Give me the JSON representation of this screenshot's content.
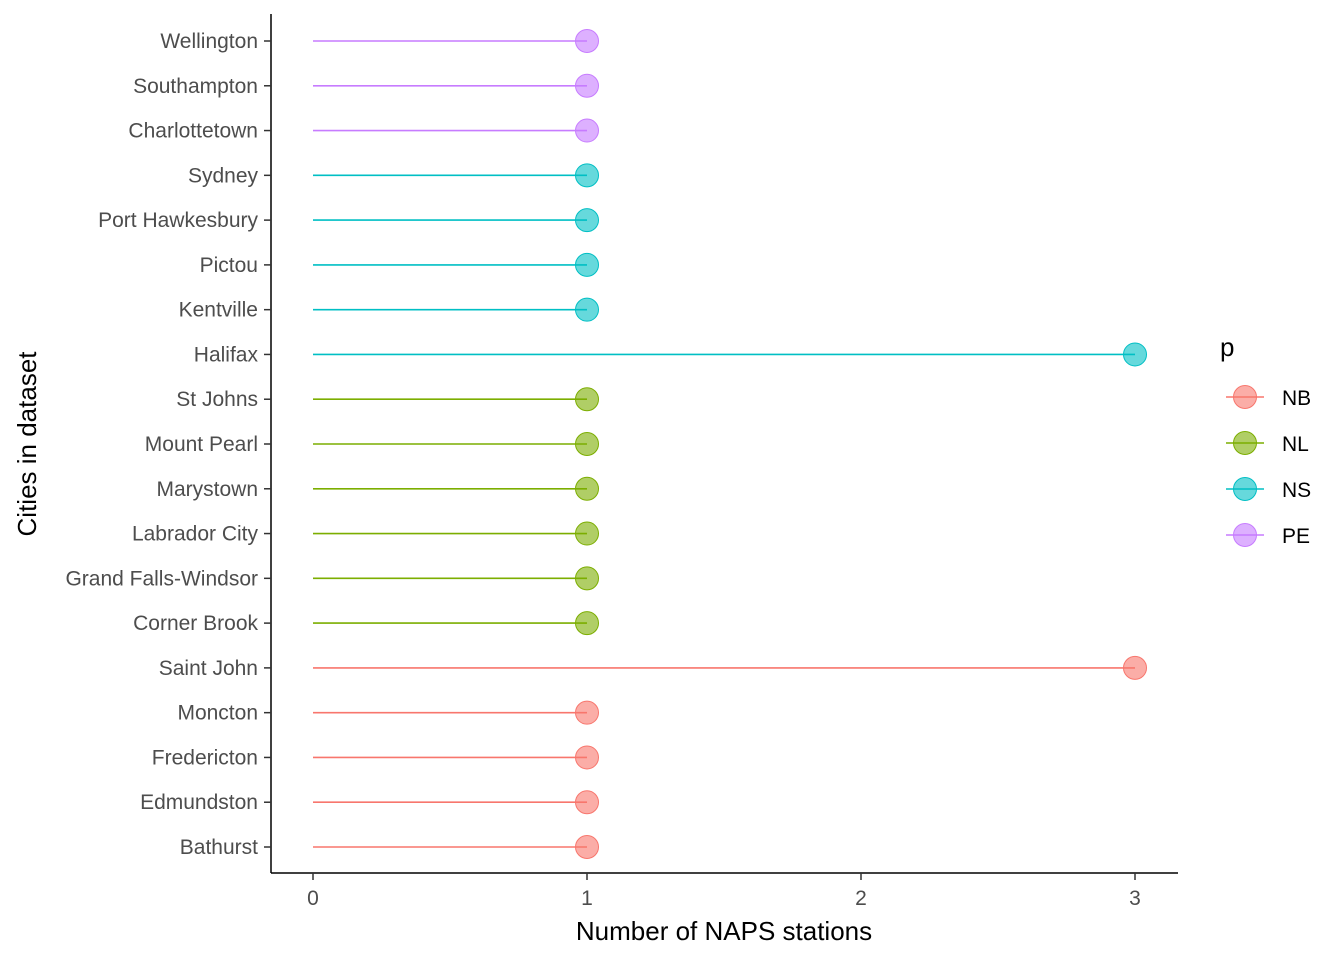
{
  "chart_data": {
    "type": "lollipop",
    "orientation": "horizontal",
    "title": "",
    "xlabel": "Number of NAPS stations",
    "ylabel": "Cities in dataset",
    "xlim": [
      -0.15,
      3.15
    ],
    "x_ticks": [
      "0",
      "1",
      "2",
      "3"
    ],
    "x_tick_values": [
      0,
      1,
      2,
      3
    ],
    "grid": false,
    "legend": {
      "title": "p",
      "placement": "right",
      "entries": [
        {
          "label": "NB",
          "color": "#F8766D"
        },
        {
          "label": "NL",
          "color": "#7CAE00"
        },
        {
          "label": "NS",
          "color": "#00BFC4"
        },
        {
          "label": "PE",
          "color": "#C77CFF"
        }
      ]
    },
    "categories": [
      "Bathurst",
      "Edmundston",
      "Fredericton",
      "Moncton",
      "Saint John",
      "Corner Brook",
      "Grand Falls-Windsor",
      "Labrador City",
      "Marystown",
      "Mount Pearl",
      "St Johns",
      "Halifax",
      "Kentville",
      "Pictou",
      "Port Hawkesbury",
      "Sydney",
      "Charlottetown",
      "Southampton",
      "Wellington"
    ],
    "values": [
      1,
      1,
      1,
      1,
      3,
      1,
      1,
      1,
      1,
      1,
      1,
      3,
      1,
      1,
      1,
      1,
      1,
      1,
      1
    ],
    "groups": [
      "NB",
      "NB",
      "NB",
      "NB",
      "NB",
      "NL",
      "NL",
      "NL",
      "NL",
      "NL",
      "NL",
      "NS",
      "NS",
      "NS",
      "NS",
      "NS",
      "PE",
      "PE",
      "PE"
    ]
  }
}
